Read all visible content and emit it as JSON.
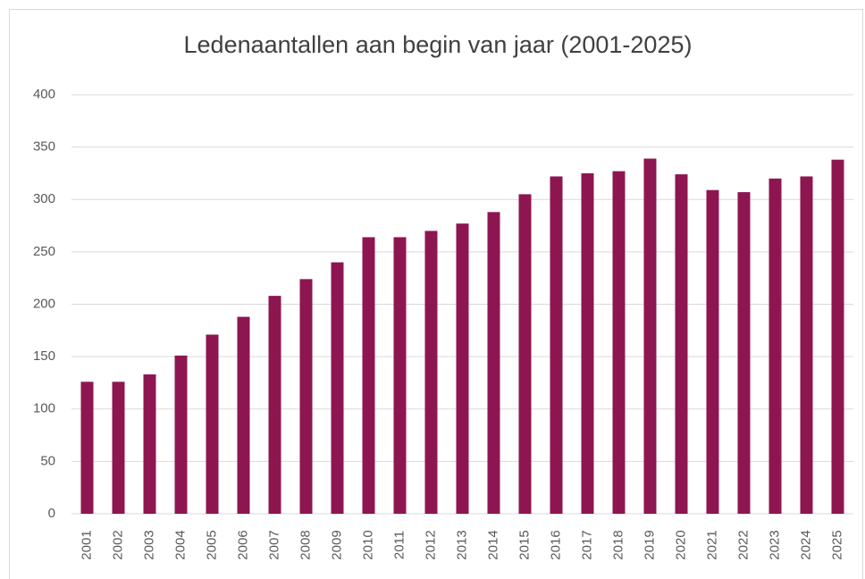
{
  "chart_data": {
    "type": "bar",
    "title": "Ledenaantallen aan begin van jaar (2001-2025)",
    "categories": [
      "2001",
      "2002",
      "2003",
      "2004",
      "2005",
      "2006",
      "2007",
      "2008",
      "2009",
      "2010",
      "2011",
      "2012",
      "2013",
      "2014",
      "2015",
      "2016",
      "2017",
      "2018",
      "2019",
      "2020",
      "2021",
      "2022",
      "2023",
      "2024",
      "2025"
    ],
    "values": [
      126,
      126,
      133,
      151,
      171,
      188,
      208,
      224,
      240,
      264,
      264,
      270,
      277,
      288,
      305,
      322,
      325,
      327,
      339,
      324,
      309,
      307,
      320,
      322,
      338
    ],
    "color": "#8e1650",
    "ylim": [
      0,
      400
    ],
    "yticks": [
      0,
      50,
      100,
      150,
      200,
      250,
      300,
      350,
      400
    ],
    "grid": true
  }
}
